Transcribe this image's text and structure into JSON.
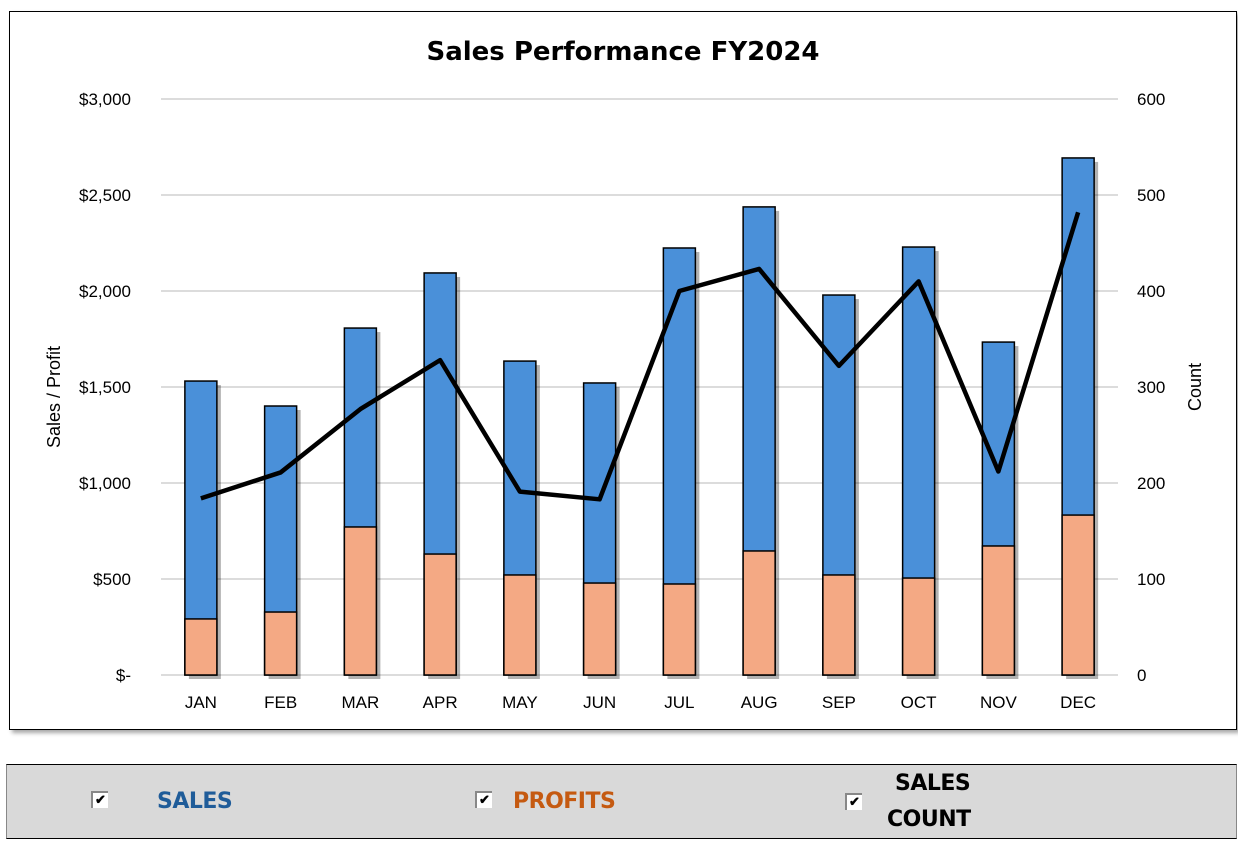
{
  "chart_data": {
    "type": "bar+line",
    "title": "Sales Performance FY2024",
    "ylabel": "Sales / Profit",
    "y2label": "Count",
    "ylim": [
      0,
      3000
    ],
    "y2lim": [
      0,
      600
    ],
    "yticks": [
      "$-",
      "$500",
      "$1,000",
      "$1,500",
      "$2,000",
      "$2,500",
      "$3,000"
    ],
    "y2ticks": [
      "0",
      "100",
      "200",
      "300",
      "400",
      "500",
      "600"
    ],
    "grid": true,
    "categories": [
      "JAN",
      "FEB",
      "MAR",
      "APR",
      "MAY",
      "JUN",
      "JUL",
      "AUG",
      "SEP",
      "OCT",
      "NOV",
      "DEC"
    ],
    "series": [
      {
        "name": "SALES",
        "type": "bar",
        "axis": "left",
        "color": "#4a90d9",
        "values": [
          1531,
          1401,
          1807,
          2094,
          1635,
          1521,
          2224,
          2438,
          1979,
          2229,
          1734,
          2693
        ]
      },
      {
        "name": "PROFITS",
        "type": "bar",
        "axis": "left",
        "color": "#f4a984",
        "values": [
          292,
          328,
          771,
          630,
          521,
          479,
          474,
          646,
          521,
          505,
          672,
          833
        ]
      },
      {
        "name": "SALES COUNT",
        "type": "line",
        "axis": "right",
        "color": "#000000",
        "values": [
          184,
          211,
          277,
          328,
          191,
          183,
          400,
          423,
          322,
          410,
          212,
          482
        ]
      }
    ]
  },
  "controls": [
    {
      "label": "SALES",
      "checked": true,
      "color": "#1f5c99"
    },
    {
      "label": "PROFITS",
      "checked": true,
      "color": "#c55a11"
    },
    {
      "label_line1": "SALES",
      "label_line2": "COUNT",
      "checked": true,
      "color": "#000000"
    }
  ],
  "checkmark": "✔"
}
